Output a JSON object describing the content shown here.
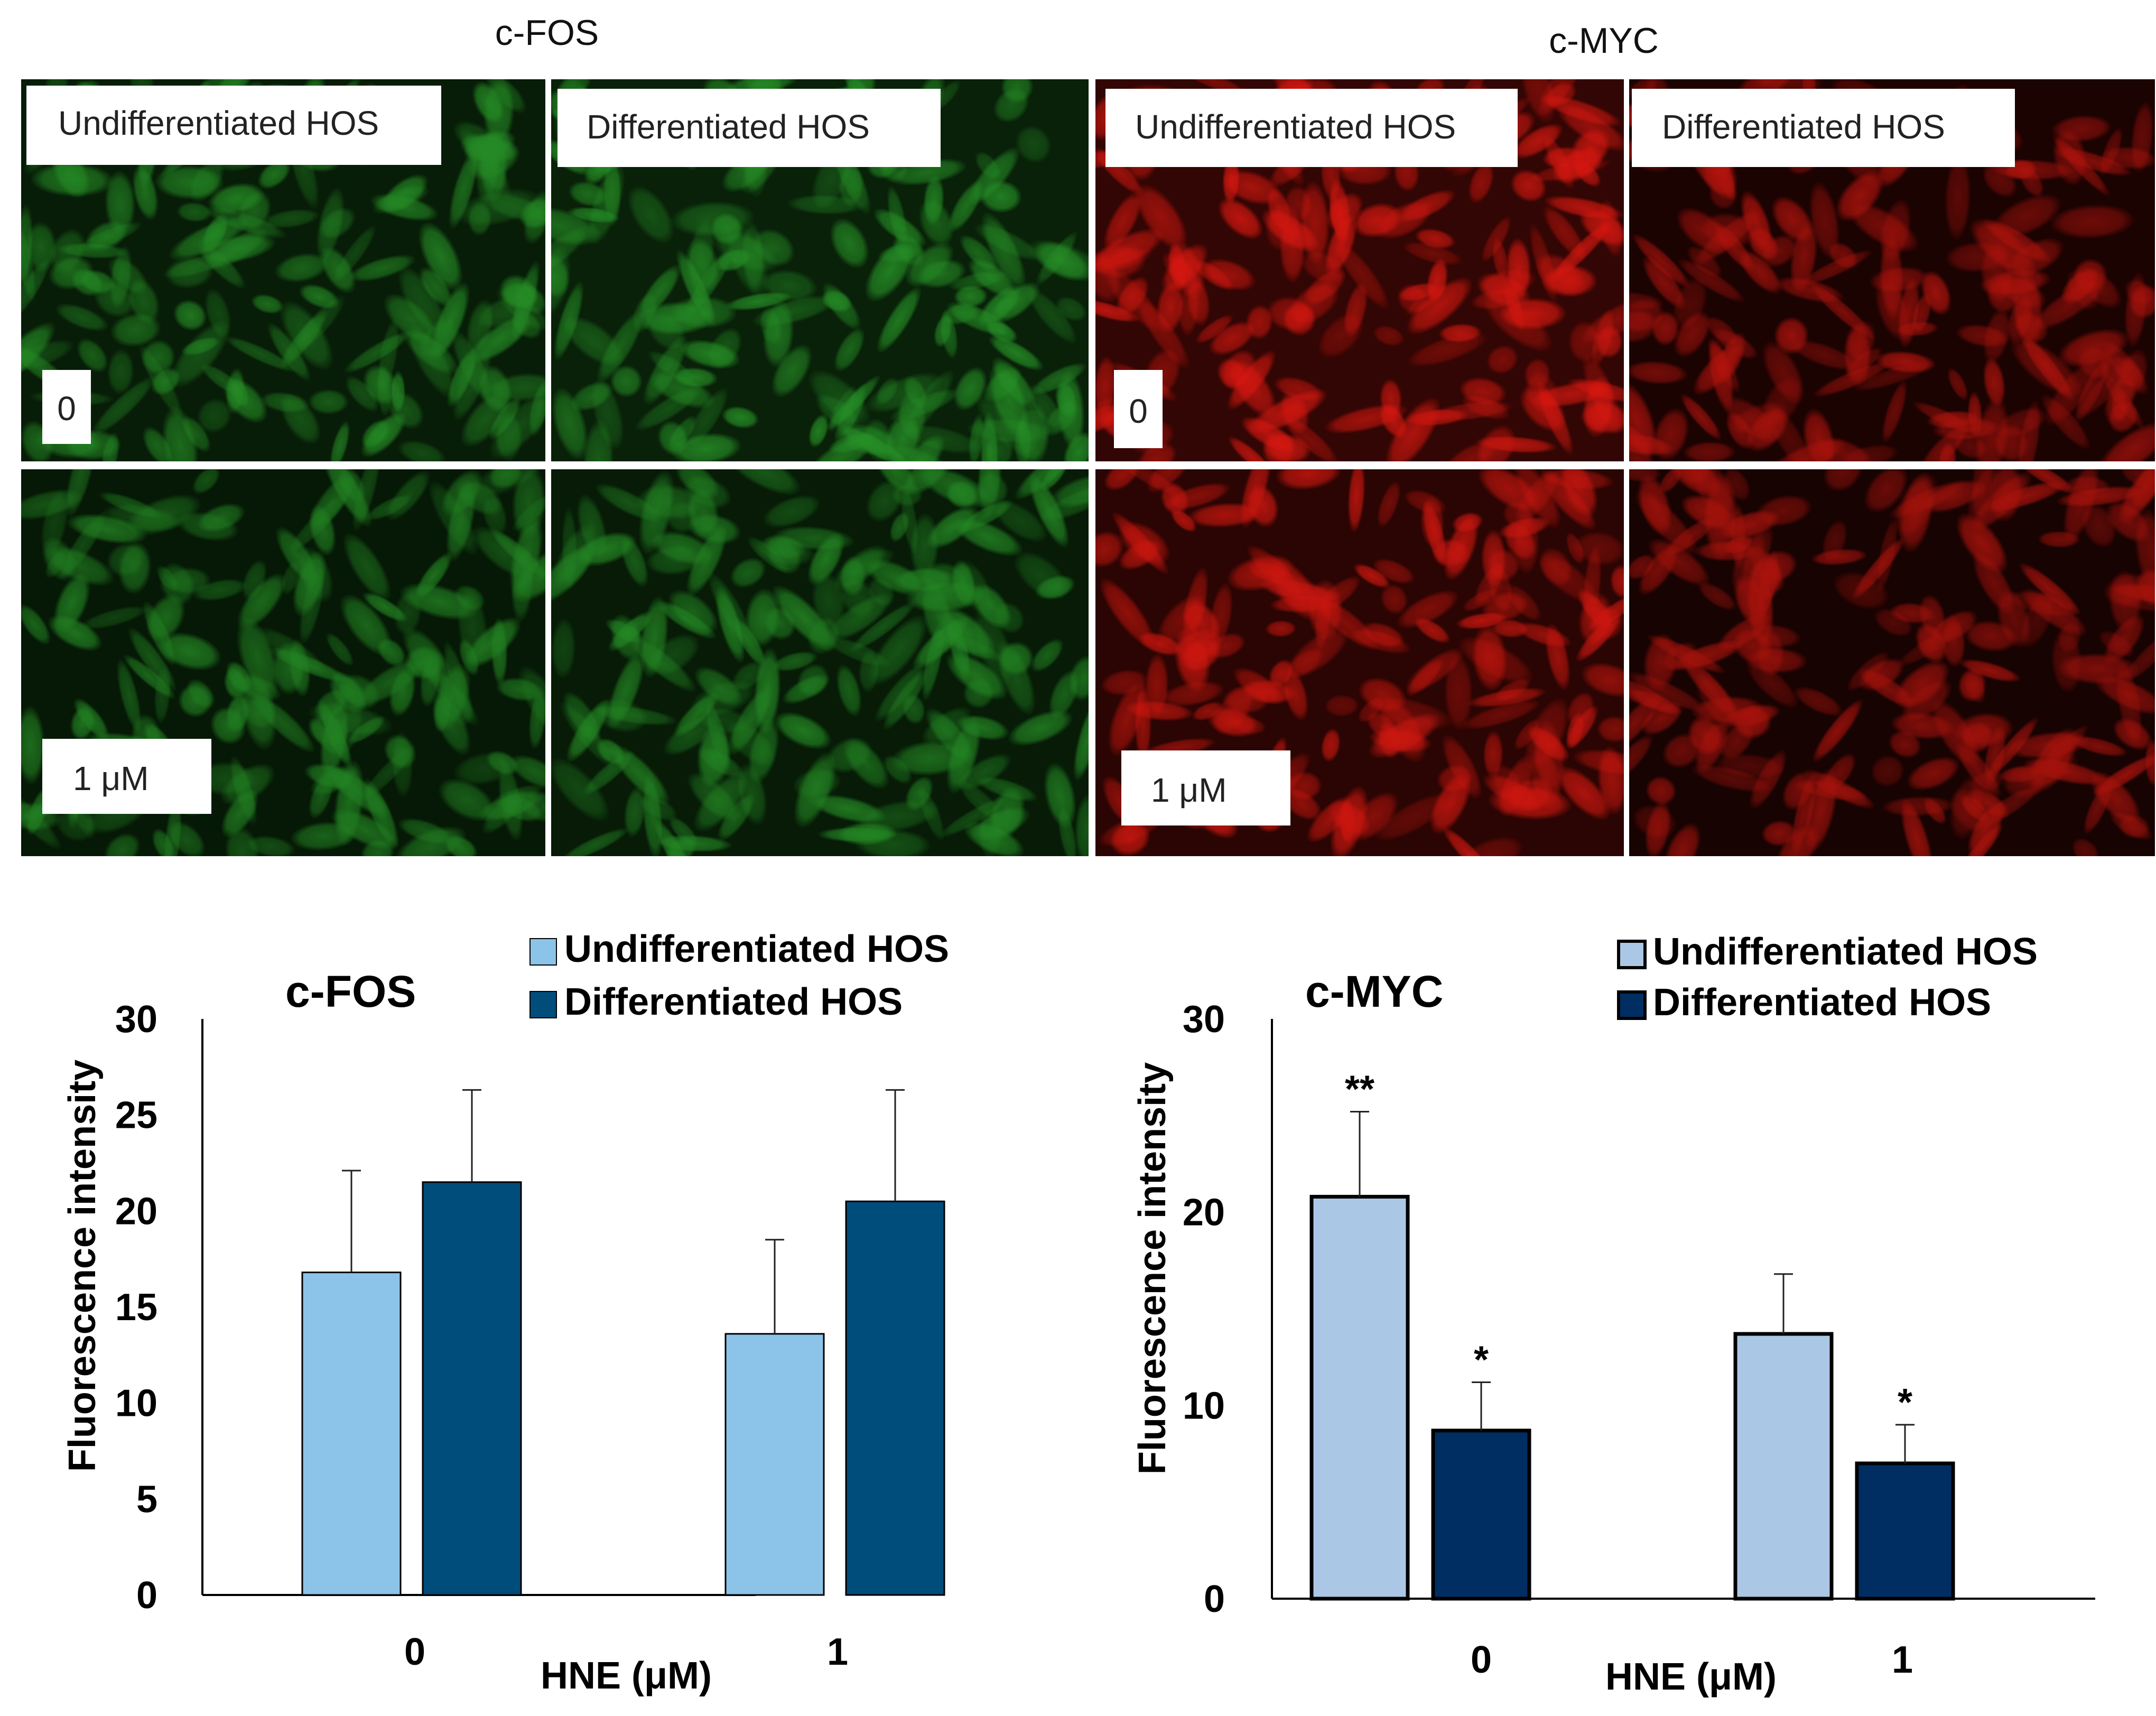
{
  "micrographs": {
    "groups": [
      {
        "title": "c-FOS",
        "stain_color": "#2a9a2a",
        "columns": [
          "Undifferentiated HOS",
          "Differentiated HOS"
        ],
        "rows": [
          "0",
          "1 μM"
        ],
        "panel_brightness": [
          [
            0.85,
            0.95
          ],
          [
            0.7,
            0.8
          ]
        ]
      },
      {
        "title": "c-MYC",
        "stain_color": "#e21a12",
        "columns": [
          "Undifferentiated HOS",
          "Differentiated HOS"
        ],
        "rows": [
          "0",
          "1 μM"
        ],
        "panel_brightness": [
          [
            1.0,
            0.55
          ],
          [
            0.85,
            0.45
          ]
        ]
      }
    ]
  },
  "chart_data": [
    {
      "type": "bar",
      "title": "c-FOS",
      "xlabel": "HNE (μM)",
      "ylabel": "Fluorescence  intensity",
      "categories": [
        "0",
        "1"
      ],
      "ylim": [
        0,
        30
      ],
      "yticks": [
        0,
        5,
        10,
        15,
        20,
        25,
        30
      ],
      "grid": false,
      "legend_position": "top-right",
      "series": [
        {
          "name": "Undifferentiated HOS",
          "color": "#8cc3e8",
          "values": [
            16.8,
            13.6
          ],
          "error": [
            5.3,
            4.9
          ]
        },
        {
          "name": "Differentiated HOS",
          "color": "#004c7a",
          "values": [
            21.5,
            20.5
          ],
          "error": [
            4.8,
            5.8
          ]
        }
      ],
      "annotations": []
    },
    {
      "type": "bar",
      "title": "c-MYC",
      "xlabel": "HNE (μM)",
      "ylabel": "Fluorescence  intensity",
      "categories": [
        "0",
        "1"
      ],
      "ylim": [
        0,
        30
      ],
      "yticks": [
        0,
        10,
        20,
        30
      ],
      "grid": false,
      "legend_position": "top-right",
      "series": [
        {
          "name": "Undifferentiated HOS",
          "color": "#abc7e6",
          "values": [
            20.8,
            13.7
          ],
          "error": [
            4.4,
            3.1
          ]
        },
        {
          "name": "Differentiated HOS",
          "color": "#002e63",
          "values": [
            8.7,
            7.0
          ],
          "error": [
            2.5,
            2.0
          ]
        }
      ],
      "annotations": [
        {
          "category": "0",
          "series": 0,
          "text": "**"
        },
        {
          "category": "0",
          "series": 1,
          "text": "*"
        },
        {
          "category": "1",
          "series": 1,
          "text": "*"
        }
      ]
    }
  ]
}
